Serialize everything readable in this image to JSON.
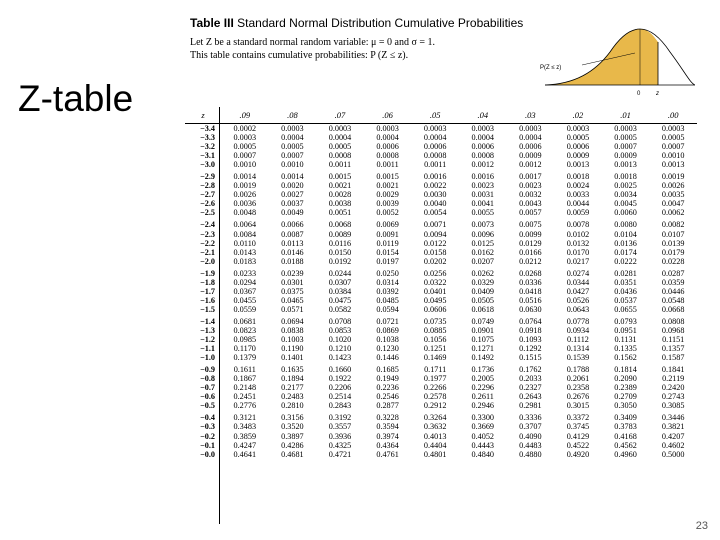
{
  "slide": {
    "title": "Z-table",
    "page_number": "23"
  },
  "table": {
    "title_bold": "Table III",
    "title_rest": "Standard Normal Distribution Cumulative Probabilities",
    "intro_line1": "Let Z be a standard normal random variable: μ = 0 and σ = 1.",
    "intro_line2": "This table contains cumulative probabilities: P (Z ≤ z).",
    "figure": {
      "label": "P(Z ≤ z)",
      "zero_label": "0",
      "z_label": "z"
    },
    "header": [
      "z",
      ".09",
      ".08",
      ".07",
      ".06",
      ".05",
      ".04",
      ".03",
      ".02",
      ".01",
      ".00"
    ],
    "rows": [
      {
        "z": "−3.4",
        "v": [
          "0.0002",
          "0.0003",
          "0.0003",
          "0.0003",
          "0.0003",
          "0.0003",
          "0.0003",
          "0.0003",
          "0.0003",
          "0.0003"
        ]
      },
      {
        "z": "−3.3",
        "v": [
          "0.0003",
          "0.0004",
          "0.0004",
          "0.0004",
          "0.0004",
          "0.0004",
          "0.0004",
          "0.0005",
          "0.0005",
          "0.0005"
        ]
      },
      {
        "z": "−3.2",
        "v": [
          "0.0005",
          "0.0005",
          "0.0005",
          "0.0006",
          "0.0006",
          "0.0006",
          "0.0006",
          "0.0006",
          "0.0007",
          "0.0007"
        ]
      },
      {
        "z": "−3.1",
        "v": [
          "0.0007",
          "0.0007",
          "0.0008",
          "0.0008",
          "0.0008",
          "0.0008",
          "0.0009",
          "0.0009",
          "0.0009",
          "0.0010"
        ]
      },
      {
        "z": "−3.0",
        "v": [
          "0.0010",
          "0.0010",
          "0.0011",
          "0.0011",
          "0.0011",
          "0.0012",
          "0.0012",
          "0.0013",
          "0.0013",
          "0.0013"
        ]
      },
      {
        "z": "−2.9",
        "v": [
          "0.0014",
          "0.0014",
          "0.0015",
          "0.0015",
          "0.0016",
          "0.0016",
          "0.0017",
          "0.0018",
          "0.0018",
          "0.0019"
        ]
      },
      {
        "z": "−2.8",
        "v": [
          "0.0019",
          "0.0020",
          "0.0021",
          "0.0021",
          "0.0022",
          "0.0023",
          "0.0023",
          "0.0024",
          "0.0025",
          "0.0026"
        ]
      },
      {
        "z": "−2.7",
        "v": [
          "0.0026",
          "0.0027",
          "0.0028",
          "0.0029",
          "0.0030",
          "0.0031",
          "0.0032",
          "0.0033",
          "0.0034",
          "0.0035"
        ]
      },
      {
        "z": "−2.6",
        "v": [
          "0.0036",
          "0.0037",
          "0.0038",
          "0.0039",
          "0.0040",
          "0.0041",
          "0.0043",
          "0.0044",
          "0.0045",
          "0.0047"
        ]
      },
      {
        "z": "−2.5",
        "v": [
          "0.0048",
          "0.0049",
          "0.0051",
          "0.0052",
          "0.0054",
          "0.0055",
          "0.0057",
          "0.0059",
          "0.0060",
          "0.0062"
        ]
      },
      {
        "z": "−2.4",
        "v": [
          "0.0064",
          "0.0066",
          "0.0068",
          "0.0069",
          "0.0071",
          "0.0073",
          "0.0075",
          "0.0078",
          "0.0080",
          "0.0082"
        ]
      },
      {
        "z": "−2.3",
        "v": [
          "0.0084",
          "0.0087",
          "0.0089",
          "0.0091",
          "0.0094",
          "0.0096",
          "0.0099",
          "0.0102",
          "0.0104",
          "0.0107"
        ]
      },
      {
        "z": "−2.2",
        "v": [
          "0.0110",
          "0.0113",
          "0.0116",
          "0.0119",
          "0.0122",
          "0.0125",
          "0.0129",
          "0.0132",
          "0.0136",
          "0.0139"
        ]
      },
      {
        "z": "−2.1",
        "v": [
          "0.0143",
          "0.0146",
          "0.0150",
          "0.0154",
          "0.0158",
          "0.0162",
          "0.0166",
          "0.0170",
          "0.0174",
          "0.0179"
        ]
      },
      {
        "z": "−2.0",
        "v": [
          "0.0183",
          "0.0188",
          "0.0192",
          "0.0197",
          "0.0202",
          "0.0207",
          "0.0212",
          "0.0217",
          "0.0222",
          "0.0228"
        ]
      },
      {
        "z": "−1.9",
        "v": [
          "0.0233",
          "0.0239",
          "0.0244",
          "0.0250",
          "0.0256",
          "0.0262",
          "0.0268",
          "0.0274",
          "0.0281",
          "0.0287"
        ]
      },
      {
        "z": "−1.8",
        "v": [
          "0.0294",
          "0.0301",
          "0.0307",
          "0.0314",
          "0.0322",
          "0.0329",
          "0.0336",
          "0.0344",
          "0.0351",
          "0.0359"
        ]
      },
      {
        "z": "−1.7",
        "v": [
          "0.0367",
          "0.0375",
          "0.0384",
          "0.0392",
          "0.0401",
          "0.0409",
          "0.0418",
          "0.0427",
          "0.0436",
          "0.0446"
        ]
      },
      {
        "z": "−1.6",
        "v": [
          "0.0455",
          "0.0465",
          "0.0475",
          "0.0485",
          "0.0495",
          "0.0505",
          "0.0516",
          "0.0526",
          "0.0537",
          "0.0548"
        ]
      },
      {
        "z": "−1.5",
        "v": [
          "0.0559",
          "0.0571",
          "0.0582",
          "0.0594",
          "0.0606",
          "0.0618",
          "0.0630",
          "0.0643",
          "0.0655",
          "0.0668"
        ]
      },
      {
        "z": "−1.4",
        "v": [
          "0.0681",
          "0.0694",
          "0.0708",
          "0.0721",
          "0.0735",
          "0.0749",
          "0.0764",
          "0.0778",
          "0.0793",
          "0.0808"
        ]
      },
      {
        "z": "−1.3",
        "v": [
          "0.0823",
          "0.0838",
          "0.0853",
          "0.0869",
          "0.0885",
          "0.0901",
          "0.0918",
          "0.0934",
          "0.0951",
          "0.0968"
        ]
      },
      {
        "z": "−1.2",
        "v": [
          "0.0985",
          "0.1003",
          "0.1020",
          "0.1038",
          "0.1056",
          "0.1075",
          "0.1093",
          "0.1112",
          "0.1131",
          "0.1151"
        ]
      },
      {
        "z": "−1.1",
        "v": [
          "0.1170",
          "0.1190",
          "0.1210",
          "0.1230",
          "0.1251",
          "0.1271",
          "0.1292",
          "0.1314",
          "0.1335",
          "0.1357"
        ]
      },
      {
        "z": "−1.0",
        "v": [
          "0.1379",
          "0.1401",
          "0.1423",
          "0.1446",
          "0.1469",
          "0.1492",
          "0.1515",
          "0.1539",
          "0.1562",
          "0.1587"
        ]
      },
      {
        "z": "−0.9",
        "v": [
          "0.1611",
          "0.1635",
          "0.1660",
          "0.1685",
          "0.1711",
          "0.1736",
          "0.1762",
          "0.1788",
          "0.1814",
          "0.1841"
        ]
      },
      {
        "z": "−0.8",
        "v": [
          "0.1867",
          "0.1894",
          "0.1922",
          "0.1949",
          "0.1977",
          "0.2005",
          "0.2033",
          "0.2061",
          "0.2090",
          "0.2119"
        ]
      },
      {
        "z": "−0.7",
        "v": [
          "0.2148",
          "0.2177",
          "0.2206",
          "0.2236",
          "0.2266",
          "0.2296",
          "0.2327",
          "0.2358",
          "0.2389",
          "0.2420"
        ]
      },
      {
        "z": "−0.6",
        "v": [
          "0.2451",
          "0.2483",
          "0.2514",
          "0.2546",
          "0.2578",
          "0.2611",
          "0.2643",
          "0.2676",
          "0.2709",
          "0.2743"
        ]
      },
      {
        "z": "−0.5",
        "v": [
          "0.2776",
          "0.2810",
          "0.2843",
          "0.2877",
          "0.2912",
          "0.2946",
          "0.2981",
          "0.3015",
          "0.3050",
          "0.3085"
        ]
      },
      {
        "z": "−0.4",
        "v": [
          "0.3121",
          "0.3156",
          "0.3192",
          "0.3228",
          "0.3264",
          "0.3300",
          "0.3336",
          "0.3372",
          "0.3409",
          "0.3446"
        ]
      },
      {
        "z": "−0.3",
        "v": [
          "0.3483",
          "0.3520",
          "0.3557",
          "0.3594",
          "0.3632",
          "0.3669",
          "0.3707",
          "0.3745",
          "0.3783",
          "0.3821"
        ]
      },
      {
        "z": "−0.2",
        "v": [
          "0.3859",
          "0.3897",
          "0.3936",
          "0.3974",
          "0.4013",
          "0.4052",
          "0.4090",
          "0.4129",
          "0.4168",
          "0.4207"
        ]
      },
      {
        "z": "−0.1",
        "v": [
          "0.4247",
          "0.4286",
          "0.4325",
          "0.4364",
          "0.4404",
          "0.4443",
          "0.4483",
          "0.4522",
          "0.4562",
          "0.4602"
        ]
      },
      {
        "z": "−0.0",
        "v": [
          "0.4641",
          "0.4681",
          "0.4721",
          "0.4761",
          "0.4801",
          "0.4840",
          "0.4880",
          "0.4920",
          "0.4960",
          "0.5000"
        ]
      }
    ]
  }
}
